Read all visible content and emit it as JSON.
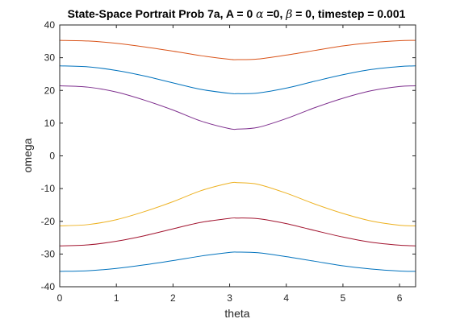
{
  "chart_data": {
    "type": "line",
    "title": {
      "prefix": "State-Space Portrait Prob 7a, A = 0 ",
      "alpha_symbol": "α",
      "mid": " =0, ",
      "beta_symbol": "β",
      "suffix": " = 0, timestep = 0.001"
    },
    "xlabel": "theta",
    "ylabel": "omega",
    "xlim": [
      0,
      6.2832
    ],
    "ylim": [
      -40,
      40
    ],
    "xticks": [
      0,
      1,
      2,
      3,
      4,
      5,
      6
    ],
    "xtick_labels": [
      "0",
      "1",
      "2",
      "3",
      "4",
      "5",
      "6"
    ],
    "yticks": [
      40,
      30,
      20,
      10,
      0,
      -10,
      -20,
      -30,
      -40
    ],
    "ytick_labels": [
      "40",
      "30",
      "20",
      "10",
      "0",
      "-10",
      "-20",
      "-30",
      "-40"
    ],
    "grid": false,
    "x": [
      0,
      0.5,
      1,
      1.5,
      2,
      2.5,
      3,
      3.1416,
      3.5,
      4,
      4.5,
      5,
      5.5,
      6,
      6.2832
    ],
    "series": [
      {
        "color": "#d95319",
        "values": [
          35.3,
          35.1,
          34.4,
          33.3,
          32.0,
          30.6,
          29.5,
          29.4,
          29.6,
          30.8,
          32.2,
          33.6,
          34.6,
          35.2,
          35.3
        ]
      },
      {
        "color": "#0072bd",
        "values": [
          27.5,
          27.2,
          26.1,
          24.4,
          22.3,
          20.3,
          19.1,
          19.0,
          19.2,
          20.7,
          22.8,
          24.8,
          26.4,
          27.3,
          27.5
        ]
      },
      {
        "color": "#7e2f8e",
        "values": [
          21.4,
          21.0,
          19.5,
          17.0,
          14.0,
          10.6,
          8.3,
          8.2,
          8.7,
          11.4,
          14.7,
          17.6,
          19.9,
          21.2,
          21.4
        ]
      },
      {
        "color": "#edb120",
        "values": [
          -21.4,
          -21.0,
          -19.5,
          -17.0,
          -14.0,
          -10.6,
          -8.3,
          -8.2,
          -8.7,
          -11.4,
          -14.7,
          -17.6,
          -19.9,
          -21.2,
          -21.4
        ]
      },
      {
        "color": "#a2142f",
        "values": [
          -27.5,
          -27.2,
          -26.1,
          -24.4,
          -22.3,
          -20.3,
          -19.1,
          -19.0,
          -19.2,
          -20.7,
          -22.8,
          -24.8,
          -26.4,
          -27.3,
          -27.5
        ]
      },
      {
        "color": "#0072bd",
        "values": [
          -35.3,
          -35.1,
          -34.4,
          -33.3,
          -32.0,
          -30.6,
          -29.5,
          -29.4,
          -29.6,
          -30.8,
          -32.2,
          -33.6,
          -34.6,
          -35.2,
          -35.3
        ]
      }
    ]
  }
}
